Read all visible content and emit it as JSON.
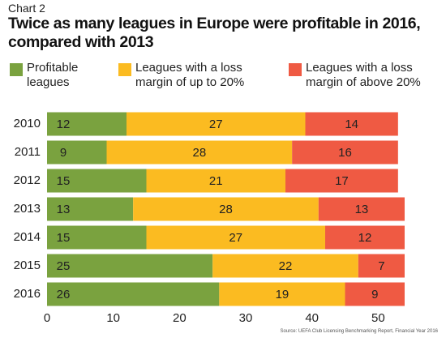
{
  "chart_data": {
    "type": "stacked-bar-horizontal",
    "label": "Chart 2",
    "title": "Twice as many leagues in Europe were profitable in 2016, compared with 2013",
    "categories": [
      "2010",
      "2011",
      "2012",
      "2013",
      "2014",
      "2015",
      "2016"
    ],
    "series": [
      {
        "name": "Profitable leagues",
        "color": "#7aa23f",
        "values": [
          12,
          9,
          15,
          13,
          15,
          25,
          26
        ]
      },
      {
        "name": "Leagues with a loss margin of up to 20%",
        "color": "#fbbb21",
        "values": [
          27,
          28,
          21,
          28,
          27,
          22,
          19
        ]
      },
      {
        "name": "Leagues with a loss margin of above 20%",
        "color": "#ef5a43",
        "values": [
          14,
          16,
          17,
          13,
          12,
          7,
          9
        ]
      }
    ],
    "xlim": [
      0,
      54
    ],
    "xticks": [
      0,
      10,
      20,
      30,
      40,
      50
    ],
    "source": "Source: UEFA Club Licensing Benchmarking Report, Financial Year 2016"
  }
}
